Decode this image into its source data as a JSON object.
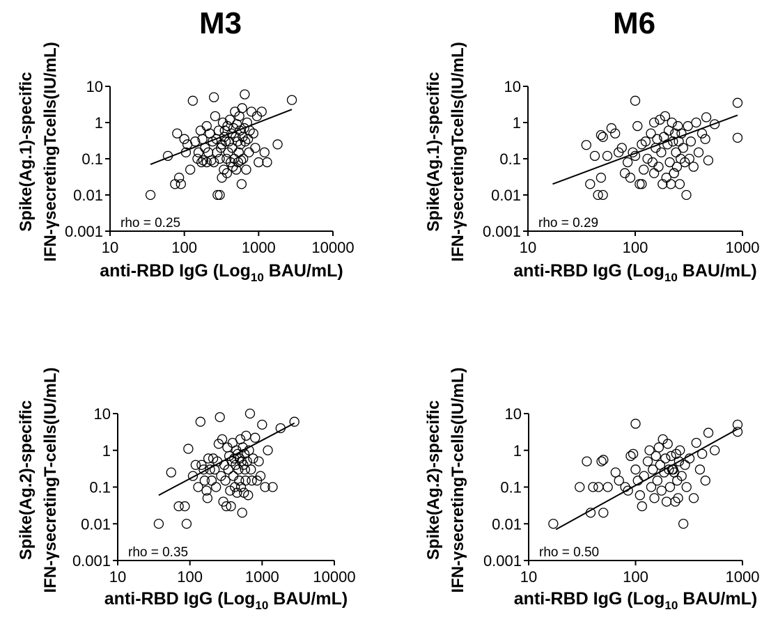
{
  "column_titles": [
    "M3",
    "M6"
  ],
  "chart_data": [
    {
      "type": "scatter",
      "panel": "M3 Ag.1",
      "ylabel": [
        "Spike(Ag.1)-specific",
        "IFN-γsecretingTcells(IU/mL)"
      ],
      "xlabel": {
        "prefix": "anti-RBD IgG (Log",
        "sub": "10",
        "suffix": " BAU/mL)"
      },
      "x_scale": "log",
      "y_scale": "log",
      "xlim": [
        10,
        10000
      ],
      "ylim": [
        0.001,
        10
      ],
      "xticks": [
        10,
        100,
        1000,
        10000
      ],
      "xtick_labels": [
        "10",
        "100",
        "1000",
        "10000"
      ],
      "yticks": [
        0.001,
        0.01,
        0.1,
        1,
        10
      ],
      "ytick_labels": [
        "0.001",
        "0.01",
        "0.1",
        "1",
        "10"
      ],
      "annotation": "rho = 0.25",
      "fit_line": [
        [
          35,
          0.07
        ],
        [
          2800,
          2.3
        ]
      ],
      "points": [
        [
          35,
          0.01
        ],
        [
          60,
          0.12
        ],
        [
          75,
          0.02
        ],
        [
          80,
          0.5
        ],
        [
          85,
          0.03
        ],
        [
          90,
          0.02
        ],
        [
          100,
          0.35
        ],
        [
          105,
          0.15
        ],
        [
          110,
          0.25
        ],
        [
          120,
          0.05
        ],
        [
          130,
          4
        ],
        [
          140,
          0.3
        ],
        [
          150,
          0.1
        ],
        [
          155,
          0.15
        ],
        [
          165,
          0.6
        ],
        [
          170,
          0.08
        ],
        [
          175,
          0.35
        ],
        [
          180,
          0.09
        ],
        [
          190,
          0.2
        ],
        [
          200,
          0.8
        ],
        [
          200,
          0.08
        ],
        [
          210,
          0.15
        ],
        [
          220,
          0.5
        ],
        [
          230,
          0.09
        ],
        [
          240,
          0.3
        ],
        [
          250,
          0.08
        ],
        [
          250,
          5
        ],
        [
          260,
          1.5
        ],
        [
          270,
          0.35
        ],
        [
          275,
          0.15
        ],
        [
          280,
          0.01
        ],
        [
          290,
          0.6
        ],
        [
          300,
          0.01
        ],
        [
          300,
          0.1
        ],
        [
          310,
          0.2
        ],
        [
          320,
          0.03
        ],
        [
          320,
          0.25
        ],
        [
          330,
          1
        ],
        [
          340,
          0.05
        ],
        [
          345,
          0.4
        ],
        [
          350,
          0.6
        ],
        [
          360,
          0.3
        ],
        [
          370,
          0.1
        ],
        [
          375,
          0.04
        ],
        [
          380,
          0.8
        ],
        [
          390,
          0.15
        ],
        [
          400,
          0.3
        ],
        [
          410,
          1.2
        ],
        [
          420,
          0.08
        ],
        [
          430,
          0.5
        ],
        [
          440,
          0.2
        ],
        [
          450,
          0.06
        ],
        [
          460,
          0.7
        ],
        [
          470,
          0.1
        ],
        [
          480,
          2
        ],
        [
          490,
          0.4
        ],
        [
          500,
          0.05
        ],
        [
          510,
          0.9
        ],
        [
          520,
          0.3
        ],
        [
          530,
          0.08
        ],
        [
          540,
          0.15
        ],
        [
          550,
          1.5
        ],
        [
          560,
          0.6
        ],
        [
          570,
          0.25
        ],
        [
          580,
          0.09
        ],
        [
          590,
          0.02
        ],
        [
          600,
          2.5
        ],
        [
          610,
          0.4
        ],
        [
          620,
          0.1
        ],
        [
          640,
          0.7
        ],
        [
          650,
          6
        ],
        [
          660,
          0.3
        ],
        [
          680,
          0.05
        ],
        [
          700,
          1
        ],
        [
          720,
          0.35
        ],
        [
          740,
          0.15
        ],
        [
          760,
          0.6
        ],
        [
          800,
          2
        ],
        [
          850,
          0.5
        ],
        [
          900,
          0.2
        ],
        [
          950,
          1.5
        ],
        [
          1000,
          0.08
        ],
        [
          1100,
          2
        ],
        [
          1200,
          0.15
        ],
        [
          1300,
          0.08
        ],
        [
          1800,
          0.25
        ],
        [
          2800,
          4.2
        ]
      ]
    },
    {
      "type": "scatter",
      "panel": "M6 Ag.1",
      "ylabel": [
        "Spike(Ag.1)-specific",
        "IFN-γsecretingTcells(IU/mL)"
      ],
      "xlabel": {
        "prefix": "anti-RBD IgG (Log",
        "sub": "10",
        "suffix": " BAU/mL)"
      },
      "x_scale": "log",
      "y_scale": "log",
      "xlim": [
        10,
        1000
      ],
      "ylim": [
        0.001,
        10
      ],
      "xticks": [
        10,
        100,
        1000
      ],
      "xtick_labels": [
        "10",
        "100",
        "1000"
      ],
      "yticks": [
        0.001,
        0.01,
        0.1,
        1,
        10
      ],
      "ytick_labels": [
        "0.001",
        "0.01",
        "0.1",
        "1",
        "10"
      ],
      "annotation": "rho = 0.29",
      "fit_line": [
        [
          17,
          0.02
        ],
        [
          900,
          1.6
        ]
      ],
      "points": [
        [
          35,
          0.24
        ],
        [
          38,
          0.02
        ],
        [
          42,
          0.12
        ],
        [
          45,
          0.01
        ],
        [
          48,
          0.03
        ],
        [
          48,
          0.45
        ],
        [
          50,
          0.4
        ],
        [
          50,
          0.01
        ],
        [
          55,
          0.12
        ],
        [
          60,
          0.7
        ],
        [
          65,
          0.5
        ],
        [
          70,
          0.15
        ],
        [
          75,
          0.2
        ],
        [
          80,
          0.04
        ],
        [
          85,
          0.08
        ],
        [
          90,
          0.03
        ],
        [
          95,
          0.15
        ],
        [
          100,
          0.12
        ],
        [
          100,
          4
        ],
        [
          105,
          0.8
        ],
        [
          110,
          0.02
        ],
        [
          115,
          0.25
        ],
        [
          115,
          0.02
        ],
        [
          120,
          0.05
        ],
        [
          125,
          0.3
        ],
        [
          130,
          0.1
        ],
        [
          140,
          0.5
        ],
        [
          145,
          0.08
        ],
        [
          150,
          1
        ],
        [
          150,
          0.04
        ],
        [
          155,
          0.2
        ],
        [
          160,
          0.35
        ],
        [
          165,
          0.06
        ],
        [
          170,
          1.2
        ],
        [
          175,
          0.15
        ],
        [
          180,
          0.02
        ],
        [
          185,
          0.4
        ],
        [
          190,
          1.5
        ],
        [
          195,
          0.03
        ],
        [
          200,
          0.25
        ],
        [
          205,
          0.6
        ],
        [
          210,
          0.08
        ],
        [
          215,
          0.02
        ],
        [
          220,
          1
        ],
        [
          225,
          0.3
        ],
        [
          230,
          0.04
        ],
        [
          230,
          0.04
        ],
        [
          235,
          0.5
        ],
        [
          240,
          0.15
        ],
        [
          245,
          0.06
        ],
        [
          250,
          0.8
        ],
        [
          255,
          0.3
        ],
        [
          260,
          0.02
        ],
        [
          265,
          0.1
        ],
        [
          270,
          0.5
        ],
        [
          280,
          0.2
        ],
        [
          290,
          0.08
        ],
        [
          300,
          0.01
        ],
        [
          310,
          0.8
        ],
        [
          320,
          0.1
        ],
        [
          330,
          0.3
        ],
        [
          350,
          0.06
        ],
        [
          370,
          1
        ],
        [
          390,
          0.15
        ],
        [
          420,
          0.5
        ],
        [
          450,
          0.35
        ],
        [
          460,
          1.4
        ],
        [
          480,
          0.09
        ],
        [
          550,
          0.9
        ],
        [
          900,
          3.5
        ],
        [
          900,
          0.38
        ]
      ]
    },
    {
      "type": "scatter",
      "panel": "M3 Ag.2",
      "ylabel": [
        "Spike(Ag.2)-specific",
        "IFN-γsecretingT-cells(IU/mL)"
      ],
      "xlabel": {
        "prefix": "anti-RBD IgG (Log",
        "sub": "10",
        "suffix": " BAU/mL)"
      },
      "x_scale": "log",
      "y_scale": "log",
      "xlim": [
        10,
        10000
      ],
      "ylim": [
        0.001,
        10
      ],
      "xticks": [
        10,
        100,
        1000,
        10000
      ],
      "xtick_labels": [
        "10",
        "100",
        "1000",
        "10000"
      ],
      "yticks": [
        0.001,
        0.01,
        0.1,
        1,
        10
      ],
      "ytick_labels": [
        "0.001",
        "0.01",
        "0.1",
        "1",
        "10"
      ],
      "annotation": "rho = 0.35",
      "fit_line": [
        [
          37,
          0.06
        ],
        [
          2800,
          5.5
        ]
      ],
      "points": [
        [
          37,
          0.01
        ],
        [
          55,
          0.25
        ],
        [
          70,
          0.03
        ],
        [
          85,
          0.03
        ],
        [
          90,
          0.01
        ],
        [
          95,
          1.1
        ],
        [
          110,
          0.2
        ],
        [
          120,
          0.4
        ],
        [
          130,
          0.1
        ],
        [
          140,
          6
        ],
        [
          145,
          0.4
        ],
        [
          155,
          0.3
        ],
        [
          160,
          0.15
        ],
        [
          170,
          0.08
        ],
        [
          175,
          0.05
        ],
        [
          180,
          0.6
        ],
        [
          190,
          0.3
        ],
        [
          200,
          0.15
        ],
        [
          210,
          0.6
        ],
        [
          220,
          0.3
        ],
        [
          230,
          0.1
        ],
        [
          240,
          0.5
        ],
        [
          250,
          1.5
        ],
        [
          260,
          8
        ],
        [
          270,
          0.2
        ],
        [
          280,
          2
        ],
        [
          290,
          0.04
        ],
        [
          300,
          0.4
        ],
        [
          310,
          0.15
        ],
        [
          320,
          0.03
        ],
        [
          330,
          1.2
        ],
        [
          340,
          0.3
        ],
        [
          350,
          0.7
        ],
        [
          360,
          0.08
        ],
        [
          370,
          0.03
        ],
        [
          380,
          0.5
        ],
        [
          390,
          1.6
        ],
        [
          400,
          0.2
        ],
        [
          410,
          0.6
        ],
        [
          420,
          0.1
        ],
        [
          430,
          0.4
        ],
        [
          440,
          1
        ],
        [
          450,
          0.07
        ],
        [
          460,
          0.8
        ],
        [
          470,
          0.3
        ],
        [
          480,
          0.15
        ],
        [
          490,
          0.6
        ],
        [
          500,
          2
        ],
        [
          510,
          0.1
        ],
        [
          520,
          0.5
        ],
        [
          530,
          0.02
        ],
        [
          540,
          1.2
        ],
        [
          550,
          0.4
        ],
        [
          560,
          0.07
        ],
        [
          570,
          0.8
        ],
        [
          580,
          0.3
        ],
        [
          590,
          0.15
        ],
        [
          600,
          2.5
        ],
        [
          620,
          0.5
        ],
        [
          640,
          0.06
        ],
        [
          660,
          1
        ],
        [
          680,
          10
        ],
        [
          700,
          0.3
        ],
        [
          720,
          0.15
        ],
        [
          750,
          0.6
        ],
        [
          800,
          2.2
        ],
        [
          850,
          0.15
        ],
        [
          900,
          0.5
        ],
        [
          950,
          0.2
        ],
        [
          1000,
          5
        ],
        [
          1100,
          0.1
        ],
        [
          1200,
          1
        ],
        [
          1400,
          0.1
        ],
        [
          1800,
          4
        ],
        [
          2800,
          6
        ]
      ]
    },
    {
      "type": "scatter",
      "panel": "M6 Ag.2",
      "ylabel": [
        "Spike(Ag.2)-specific",
        "IFN-γsecretingT-cells(IU/mL)"
      ],
      "xlabel": {
        "prefix": "anti-RBD IgG (Log",
        "sub": "10",
        "suffix": " BAU/mL)"
      },
      "x_scale": "log",
      "y_scale": "log",
      "xlim": [
        10,
        1000
      ],
      "ylim": [
        0.001,
        10
      ],
      "xticks": [
        10,
        100,
        1000
      ],
      "xtick_labels": [
        "10",
        "100",
        "1000"
      ],
      "yticks": [
        0.001,
        0.01,
        0.1,
        1,
        10
      ],
      "ytick_labels": [
        "0.001",
        "0.01",
        "0.1",
        "1",
        "10"
      ],
      "annotation": "rho = 0.50",
      "fit_line": [
        [
          18,
          0.007
        ],
        [
          900,
          3.8
        ]
      ],
      "points": [
        [
          17,
          0.01
        ],
        [
          30,
          0.1
        ],
        [
          35,
          0.5
        ],
        [
          38,
          0.02
        ],
        [
          40,
          0.1
        ],
        [
          45,
          0.1
        ],
        [
          48,
          0.5
        ],
        [
          50,
          0.55
        ],
        [
          50,
          0.02
        ],
        [
          55,
          0.1
        ],
        [
          65,
          0.25
        ],
        [
          70,
          0.15
        ],
        [
          80,
          0.1
        ],
        [
          85,
          0.08
        ],
        [
          90,
          0.7
        ],
        [
          95,
          0.8
        ],
        [
          100,
          5.3
        ],
        [
          100,
          0.3
        ],
        [
          105,
          0.15
        ],
        [
          110,
          0.06
        ],
        [
          115,
          0.03
        ],
        [
          120,
          0.2
        ],
        [
          130,
          0.5
        ],
        [
          135,
          1
        ],
        [
          140,
          0.1
        ],
        [
          145,
          0.3
        ],
        [
          150,
          0.05
        ],
        [
          155,
          0.7
        ],
        [
          160,
          0.15
        ],
        [
          165,
          1.2
        ],
        [
          170,
          0.4
        ],
        [
          175,
          0.08
        ],
        [
          180,
          2
        ],
        [
          185,
          0.25
        ],
        [
          190,
          0.6
        ],
        [
          195,
          0.04
        ],
        [
          200,
          1.5
        ],
        [
          205,
          0.3
        ],
        [
          210,
          0.1
        ],
        [
          215,
          0.7
        ],
        [
          220,
          0.3
        ],
        [
          225,
          0.3
        ],
        [
          230,
          0.25
        ],
        [
          235,
          0.04
        ],
        [
          240,
          0.8
        ],
        [
          245,
          0.15
        ],
        [
          250,
          0.05
        ],
        [
          255,
          0.5
        ],
        [
          260,
          1
        ],
        [
          270,
          0.2
        ],
        [
          280,
          0.01
        ],
        [
          290,
          0.4
        ],
        [
          300,
          0.1
        ],
        [
          320,
          0.6
        ],
        [
          350,
          0.05
        ],
        [
          370,
          1.6
        ],
        [
          400,
          0.3
        ],
        [
          420,
          0.8
        ],
        [
          450,
          0.15
        ],
        [
          480,
          3
        ],
        [
          550,
          1
        ],
        [
          900,
          5
        ],
        [
          900,
          3.2
        ]
      ]
    }
  ]
}
